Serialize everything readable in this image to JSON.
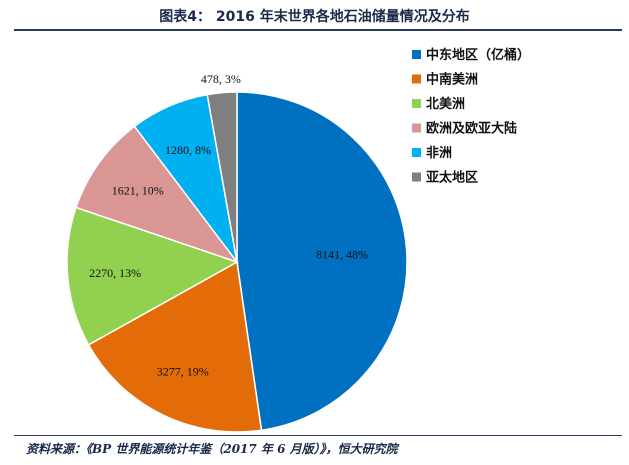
{
  "title": "图表4：  2016 年末世界各地石油储量情况及分布",
  "source": "资料来源：《BP 世界能源统计年鉴（2017 年 6 月版）》，恒大研究院",
  "chart_data": {
    "type": "pie",
    "series": [
      {
        "name": "中东地区（亿桶）",
        "value": 8141,
        "label": "8141, 48%",
        "color": "#0070C0"
      },
      {
        "name": "中南美洲",
        "value": 3277,
        "label": "3277, 19%",
        "color": "#E36C09"
      },
      {
        "name": "北美洲",
        "value": 2270,
        "label": "2270, 13%",
        "color": "#92D050"
      },
      {
        "name": "欧洲及欧亚大陆",
        "value": 1621,
        "label": "1621, 10%",
        "color": "#D99694"
      },
      {
        "name": "非洲",
        "value": 1280,
        "label": "1280, 8%",
        "color": "#00B0F0"
      },
      {
        "name": "亚太地区",
        "value": 478,
        "label": "478, 3%",
        "color": "#7F7F7F"
      }
    ],
    "legend_position": "right"
  }
}
